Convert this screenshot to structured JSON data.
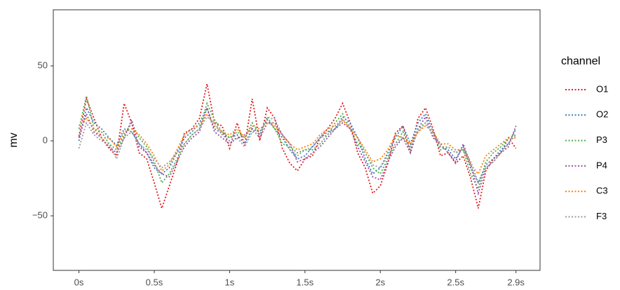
{
  "chart_data": {
    "type": "line",
    "y_label": "mv",
    "legend_title": "channel",
    "legend_position": "right",
    "line_style": "dotted",
    "xlim": [
      -0.17,
      3.06
    ],
    "ylim": [
      -86.4,
      87.4
    ],
    "xticks": [
      {
        "value": 0,
        "label": "0s"
      },
      {
        "value": 0.5,
        "label": "0.5s"
      },
      {
        "value": 1,
        "label": "1s"
      },
      {
        "value": 1.5,
        "label": "1.5s"
      },
      {
        "value": 2,
        "label": "2s"
      },
      {
        "value": 2.5,
        "label": "2.5s"
      },
      {
        "value": 2.9,
        "label": "2.9s"
      }
    ],
    "yticks": [
      {
        "value": -50,
        "label": "−50"
      },
      0,
      50
    ],
    "x": [
      0,
      0.05,
      0.1,
      0.15,
      0.2,
      0.25,
      0.3,
      0.35,
      0.4,
      0.45,
      0.5,
      0.55,
      0.6,
      0.65,
      0.7,
      0.75,
      0.8,
      0.85,
      0.9,
      0.95,
      1,
      1.05,
      1.1,
      1.15,
      1.2,
      1.25,
      1.3,
      1.35,
      1.4,
      1.45,
      1.5,
      1.55,
      1.6,
      1.65,
      1.7,
      1.75,
      1.8,
      1.85,
      1.9,
      1.95,
      2,
      2.05,
      2.1,
      2.15,
      2.2,
      2.25,
      2.3,
      2.35,
      2.4,
      2.45,
      2.5,
      2.55,
      2.6,
      2.65,
      2.7,
      2.75,
      2.8,
      2.85,
      2.9
    ],
    "series": [
      {
        "name": "O1",
        "color": "#e41a1c",
        "values": [
          3,
          28,
          15,
          2,
          -5,
          -10,
          25,
          12,
          -8,
          -12,
          -28,
          -45,
          -30,
          -15,
          5,
          8,
          15,
          38,
          12,
          10,
          -5,
          12,
          -3,
          28,
          0,
          22,
          15,
          -5,
          -15,
          -20,
          -12,
          -10,
          2,
          8,
          15,
          25,
          12,
          -8,
          -18,
          -35,
          -30,
          -15,
          5,
          10,
          -8,
          15,
          22,
          8,
          -10,
          -8,
          -15,
          -10,
          -25,
          -45,
          -20,
          -12,
          -8,
          2,
          -5
        ]
      },
      {
        "name": "O2",
        "color": "#377eb8",
        "values": [
          0,
          22,
          12,
          8,
          2,
          -3,
          8,
          6,
          -2,
          -8,
          -18,
          -22,
          -18,
          -8,
          2,
          6,
          12,
          22,
          8,
          5,
          2,
          4,
          -2,
          8,
          6,
          14,
          8,
          2,
          -6,
          -12,
          -10,
          -4,
          2,
          6,
          8,
          16,
          12,
          2,
          -12,
          -22,
          -18,
          -8,
          2,
          10,
          -2,
          12,
          18,
          6,
          -4,
          -6,
          -12,
          -4,
          -18,
          -28,
          -16,
          -12,
          -6,
          -2,
          8
        ]
      },
      {
        "name": "P3",
        "color": "#4daf4a",
        "values": [
          8,
          30,
          8,
          6,
          -2,
          -6,
          4,
          12,
          2,
          -4,
          -14,
          -28,
          -22,
          -12,
          -2,
          4,
          8,
          25,
          14,
          6,
          2,
          6,
          2,
          12,
          4,
          16,
          8,
          -2,
          -4,
          -8,
          -6,
          -6,
          -2,
          4,
          12,
          18,
          8,
          -2,
          -8,
          -18,
          -22,
          -12,
          -2,
          6,
          -6,
          8,
          12,
          4,
          -6,
          -4,
          -8,
          -6,
          -22,
          -32,
          -14,
          -8,
          -4,
          2,
          4
        ]
      },
      {
        "name": "P4",
        "color": "#984ea3",
        "values": [
          2,
          18,
          6,
          2,
          -4,
          -8,
          2,
          14,
          -4,
          -8,
          -16,
          -22,
          -24,
          -14,
          -4,
          2,
          6,
          22,
          6,
          2,
          -2,
          2,
          4,
          8,
          2,
          12,
          12,
          4,
          -2,
          -14,
          -12,
          -8,
          -4,
          2,
          8,
          12,
          8,
          -4,
          -14,
          -24,
          -26,
          -14,
          -4,
          2,
          -8,
          8,
          16,
          2,
          -2,
          -8,
          -14,
          -2,
          -16,
          -35,
          -18,
          -14,
          -8,
          -4,
          10
        ]
      },
      {
        "name": "C3",
        "color": "#ff7f00",
        "values": [
          10,
          15,
          8,
          2,
          2,
          -4,
          6,
          8,
          4,
          -2,
          -10,
          -20,
          -16,
          -6,
          4,
          8,
          10,
          18,
          10,
          6,
          4,
          8,
          2,
          10,
          8,
          12,
          10,
          4,
          -2,
          -6,
          -4,
          -2,
          4,
          8,
          10,
          14,
          8,
          2,
          -6,
          -14,
          -12,
          -6,
          4,
          2,
          -2,
          6,
          10,
          6,
          -2,
          -2,
          -6,
          -6,
          -16,
          -22,
          -10,
          -6,
          -2,
          2,
          2
        ]
      },
      {
        "name": "F3",
        "color": "#999999",
        "values": [
          -5,
          12,
          4,
          0,
          -2,
          -12,
          2,
          6,
          -2,
          -6,
          -12,
          -18,
          -14,
          -8,
          -2,
          4,
          8,
          16,
          12,
          4,
          0,
          2,
          -4,
          6,
          4,
          16,
          14,
          4,
          -6,
          -10,
          -6,
          -4,
          2,
          4,
          8,
          14,
          10,
          2,
          -8,
          -16,
          -18,
          -10,
          -2,
          2,
          -4,
          6,
          12,
          4,
          -4,
          -4,
          -8,
          -4,
          -14,
          -28,
          -18,
          -14,
          -8,
          -2,
          4
        ]
      }
    ]
  }
}
